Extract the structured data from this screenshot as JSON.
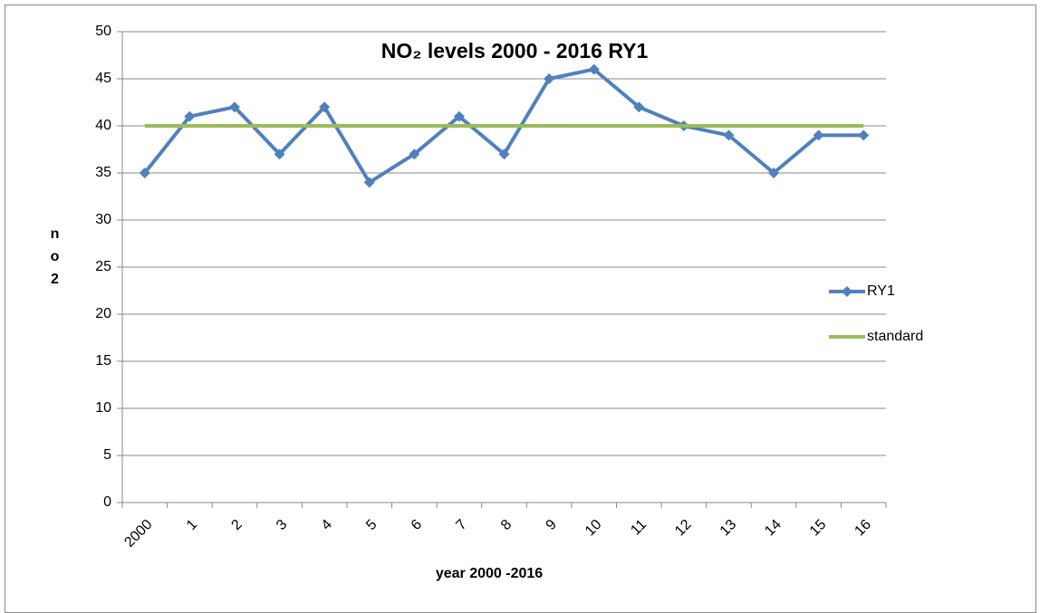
{
  "chart_data": {
    "type": "line",
    "title": "NO₂ levels 2000 - 2016 RY1",
    "x_label": "year 2000 -2016",
    "y_label": "no2",
    "categories": [
      "2000",
      "1",
      "2",
      "3",
      "4",
      "5",
      "6",
      "7",
      "8",
      "9",
      "10",
      "11",
      "12",
      "13",
      "14",
      "15",
      "16"
    ],
    "series": [
      {
        "name": "RY1",
        "color": "#4f81bd",
        "marker": "diamond",
        "values": [
          35,
          41,
          42,
          37,
          42,
          34,
          37,
          41,
          37,
          45,
          46,
          42,
          40,
          39,
          35,
          39,
          39
        ]
      },
      {
        "name": "standard",
        "color": "#9bbb59",
        "values": [
          40,
          40,
          40,
          40,
          40,
          40,
          40,
          40,
          40,
          40,
          40,
          40,
          40,
          40,
          40,
          40,
          40
        ]
      }
    ],
    "ylim": [
      0,
      50
    ],
    "yticks": [
      0,
      5,
      10,
      15,
      20,
      25,
      30,
      35,
      40,
      45,
      50
    ],
    "grid": true,
    "legend": "right"
  }
}
